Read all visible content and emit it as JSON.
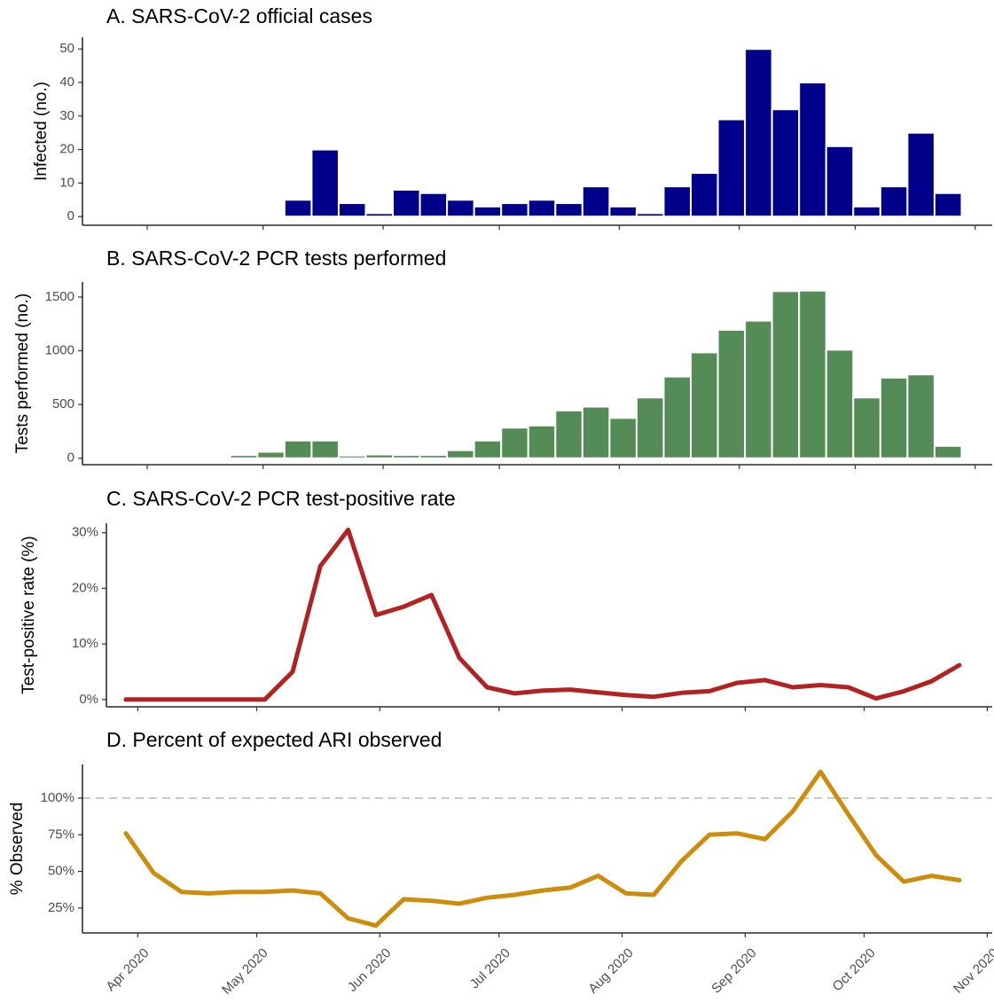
{
  "chart_data": [
    {
      "type": "bar",
      "title": "A. SARS-CoV-2 official cases",
      "y_label": "Infected (no.)",
      "color": "#00008b",
      "x": [
        0,
        1,
        2,
        3,
        4,
        5,
        6,
        7,
        8,
        9,
        10,
        11,
        12,
        13,
        14,
        15,
        16,
        17,
        18,
        19,
        20,
        21,
        22,
        23,
        24,
        25,
        26,
        27,
        28,
        29,
        30
      ],
      "values": [
        0,
        0,
        0,
        0,
        0,
        0,
        5,
        20,
        4,
        1,
        8,
        7,
        5,
        3,
        4,
        5,
        4,
        9,
        3,
        1,
        9,
        13,
        29,
        50,
        32,
        40,
        21,
        3,
        9,
        25,
        7
      ],
      "xlim": [
        -1.96,
        31.63
      ],
      "ylim": [
        -2.6,
        53.5
      ],
      "yticks": [
        0,
        10,
        20,
        30,
        40,
        50
      ]
    },
    {
      "type": "bar",
      "title": "B. SARS-CoV-2 PCR tests performed",
      "y_label": "Tests performed (no.)",
      "color": "#548b57",
      "x": [
        0,
        1,
        2,
        3,
        4,
        5,
        6,
        7,
        8,
        9,
        10,
        11,
        12,
        13,
        14,
        15,
        16,
        17,
        18,
        19,
        20,
        21,
        22,
        23,
        24,
        25,
        26,
        27,
        28,
        29,
        30
      ],
      "values": [
        0,
        5,
        5,
        10,
        30,
        60,
        165,
        165,
        25,
        35,
        30,
        30,
        75,
        165,
        285,
        305,
        445,
        480,
        375,
        565,
        760,
        985,
        1195,
        1280,
        1555,
        1560,
        1010,
        565,
        750,
        780,
        115
      ],
      "xlim": [
        -1.96,
        31.63
      ],
      "ylim": [
        -60,
        1640
      ],
      "yticks": [
        0,
        500,
        1000,
        1500
      ]
    },
    {
      "type": "line",
      "title": "C. SARS-CoV-2 PCR test-positive rate",
      "y_label": "Test-positive rate (%)",
      "color": "#b22222",
      "x": [
        0,
        1,
        2,
        3,
        4,
        5,
        6,
        7,
        8,
        9,
        10,
        11,
        12,
        13,
        14,
        15,
        16,
        17,
        18,
        19,
        20,
        21,
        22,
        23,
        24,
        25,
        26,
        27,
        28,
        29,
        30
      ],
      "values": [
        0,
        0,
        0,
        0,
        0,
        0,
        5,
        24,
        30.5,
        15.2,
        16.7,
        18.8,
        7.5,
        2.2,
        1.1,
        1.6,
        1.8,
        1.3,
        0.8,
        0.5,
        1.2,
        1.5,
        3,
        3.5,
        2.2,
        2.6,
        2.2,
        0.2,
        1.5,
        3.3,
        6.2
      ],
      "xlim": [
        -0.7,
        31.18
      ],
      "ylim": [
        -1.3,
        31.7
      ],
      "yticks": [
        {
          "value": 0,
          "label": "0%"
        },
        {
          "value": 10,
          "label": "10%"
        },
        {
          "value": 20,
          "label": "20%"
        },
        {
          "value": 30,
          "label": "30%"
        }
      ]
    },
    {
      "type": "line",
      "title": "D. Percent of expected ARI observed",
      "y_label": "% Observed",
      "color": "#cd8c0c",
      "x": [
        0,
        1,
        2,
        3,
        4,
        5,
        6,
        7,
        8,
        9,
        10,
        11,
        12,
        13,
        14,
        15,
        16,
        17,
        18,
        19,
        20,
        21,
        22,
        23,
        24,
        25,
        26,
        27,
        28,
        29,
        30
      ],
      "values": [
        76,
        49,
        36,
        35,
        36,
        36,
        37,
        35,
        18,
        13,
        31,
        30,
        28,
        32,
        34,
        37,
        39,
        47,
        35,
        34,
        57,
        75,
        76,
        72,
        91,
        118,
        89,
        61,
        43,
        47,
        44
      ],
      "reference_line": 100,
      "xlim": [
        -1.56,
        31.18
      ],
      "ylim": [
        8,
        123
      ],
      "yticks": [
        {
          "value": 25,
          "label": "25%"
        },
        {
          "value": 50,
          "label": "50%"
        },
        {
          "value": 75,
          "label": "75%"
        },
        {
          "value": 100,
          "label": "100%"
        }
      ],
      "xticks": [
        {
          "value": 0.43,
          "label": "Apr 2020"
        },
        {
          "value": 4.71,
          "label": "May 2020"
        },
        {
          "value": 9.14,
          "label": "Jun 2020"
        },
        {
          "value": 13.43,
          "label": "Jul 2020"
        },
        {
          "value": 17.86,
          "label": "Aug 2020"
        },
        {
          "value": 22.29,
          "label": "Sep 2020"
        },
        {
          "value": 26.57,
          "label": "Oct 2020"
        },
        {
          "value": 31,
          "label": "Nov 2020"
        }
      ]
    }
  ]
}
